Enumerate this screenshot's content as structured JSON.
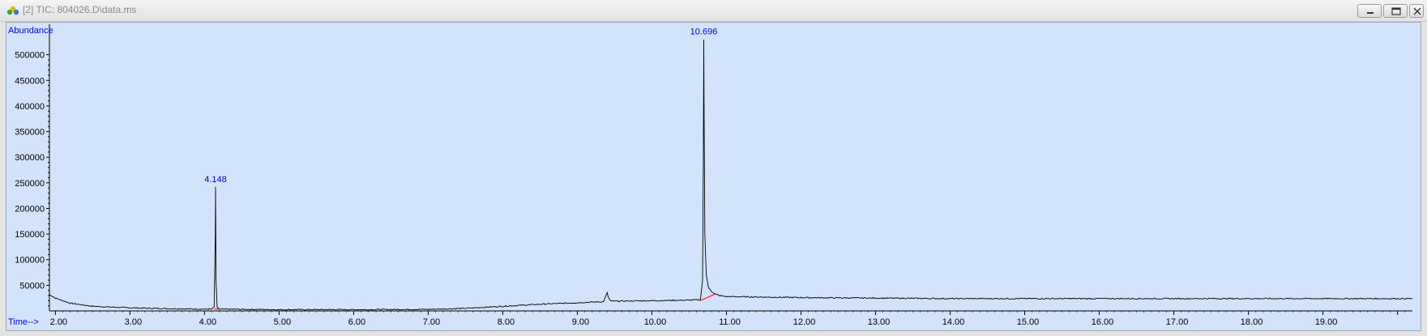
{
  "window": {
    "title": "[2] TIC: 804026.D\\data.ms",
    "buttons": {
      "minimize_icon": "minimize-icon",
      "restore_icon": "restore-icon",
      "close_icon": "close-icon"
    }
  },
  "chart_data": {
    "type": "line",
    "ylabel": "Abundance",
    "xlabel": "Time-->",
    "xlim": [
      1.92,
      20.2
    ],
    "ylim": [
      0,
      550000
    ],
    "x_ticks": [
      "2.00",
      "3.00",
      "4.00",
      "5.00",
      "6.00",
      "7.00",
      "8.00",
      "9.00",
      "10.00",
      "11.00",
      "12.00",
      "13.00",
      "14.00",
      "15.00",
      "16.00",
      "17.00",
      "18.00",
      "19.00"
    ],
    "y_ticks": [
      "50000",
      "100000",
      "150000",
      "200000",
      "250000",
      "300000",
      "350000",
      "400000",
      "450000",
      "500000"
    ],
    "peak_labels": [
      {
        "label": "4.148",
        "x": 4.148,
        "y": 242000
      },
      {
        "label": "10.696",
        "x": 10.696,
        "y": 530000
      }
    ],
    "series": [
      {
        "x": [
          1.92,
          2.0,
          2.2,
          2.5,
          3.0,
          3.5,
          4.0,
          4.1,
          4.13,
          4.145,
          4.148,
          4.155,
          4.17,
          4.2,
          4.5,
          5.0,
          6.0,
          7.0,
          7.5,
          8.0,
          8.5,
          9.0,
          9.35,
          9.4,
          9.42,
          9.45,
          9.5,
          10.0,
          10.5,
          10.65,
          10.68,
          10.69,
          10.696,
          10.7,
          10.71,
          10.73,
          10.76,
          10.8,
          10.85,
          10.9,
          11.0,
          12.0,
          13.0,
          14.0,
          15.0,
          16.0,
          17.0,
          18.0,
          19.0,
          20.2
        ],
        "y": [
          32000,
          25000,
          15000,
          9000,
          6000,
          4500,
          3500,
          3500,
          8000,
          150000,
          242000,
          60000,
          6000,
          3500,
          3000,
          2500,
          2500,
          3000,
          5000,
          9000,
          13000,
          16000,
          18000,
          35000,
          25000,
          19000,
          19000,
          20000,
          21000,
          22000,
          60000,
          300000,
          530000,
          380000,
          150000,
          70000,
          45000,
          38000,
          33000,
          30000,
          28000,
          26000,
          25000,
          24000,
          24000,
          24000,
          24000,
          24000,
          24000,
          24000
        ],
        "color": "#000000"
      }
    ],
    "baseline_color": "#ff0000",
    "label_color": "#0000cc",
    "background": "#d2e3fb"
  }
}
